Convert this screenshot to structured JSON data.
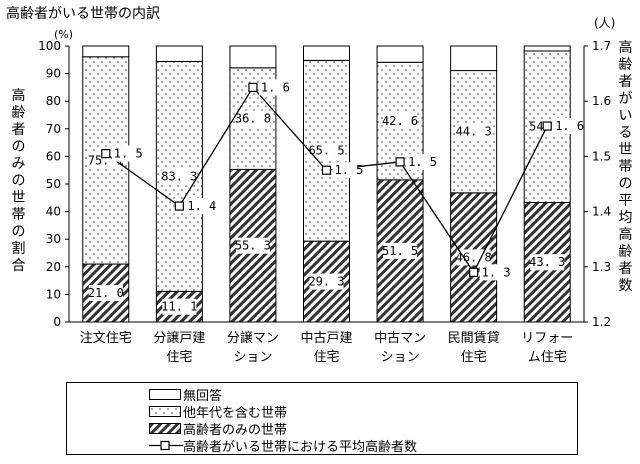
{
  "title": "高齢者がいる世帯の内訳",
  "left_unit": "(%)",
  "right_unit": "(人)",
  "left_axis_label": "高齢者のみの世帯の割合",
  "right_axis_label": "高齢者がいる世帯の平均高齢者数",
  "legend": {
    "none": "無回答",
    "other": "他年代を含む世帯",
    "elderly_only": "高齢者のみの世帯",
    "avg": "高齢者がいる世帯における平均高齢者数"
  },
  "chart_data": {
    "type": "bar",
    "stacked": true,
    "categories": [
      [
        "注文住宅"
      ],
      [
        "分譲戸建",
        "住宅"
      ],
      [
        "分譲マン",
        "ション"
      ],
      [
        "中古戸建",
        "住宅"
      ],
      [
        "中古マン",
        "ション"
      ],
      [
        "民間賃貸",
        "住宅"
      ],
      [
        "リフォー",
        "ム住宅"
      ]
    ],
    "series": [
      {
        "name": "高齢者のみの世帯",
        "values": [
          21.0,
          11.1,
          55.3,
          29.3,
          51.5,
          46.8,
          43.3
        ],
        "pattern": "hatch"
      },
      {
        "name": "他年代を含む世帯",
        "values": [
          75.1,
          83.3,
          36.8,
          65.5,
          42.6,
          44.3,
          54.9
        ],
        "pattern": "dots"
      },
      {
        "name": "無回答",
        "values": [
          3.9,
          5.6,
          7.9,
          5.2,
          5.9,
          8.9,
          1.8
        ],
        "pattern": "white"
      }
    ],
    "line_series": {
      "name": "高齢者がいる世帯における平均高齢者数",
      "values": [
        1.5,
        1.4,
        1.6,
        1.5,
        1.5,
        1.3,
        1.6
      ],
      "y_display": [
        1.505,
        1.41,
        1.625,
        1.475,
        1.49,
        1.29,
        1.555
      ]
    },
    "y_left": {
      "min": 0,
      "max": 100,
      "ticks": [
        0,
        10,
        20,
        30,
        40,
        50,
        60,
        70,
        80,
        90,
        100
      ]
    },
    "y_right": {
      "min": 1.2,
      "max": 1.7,
      "ticks": [
        "1.2",
        "1.3",
        "1.4",
        "1.5",
        "1.6",
        "1.7"
      ]
    },
    "grid": false,
    "legend_position": "bottom"
  }
}
